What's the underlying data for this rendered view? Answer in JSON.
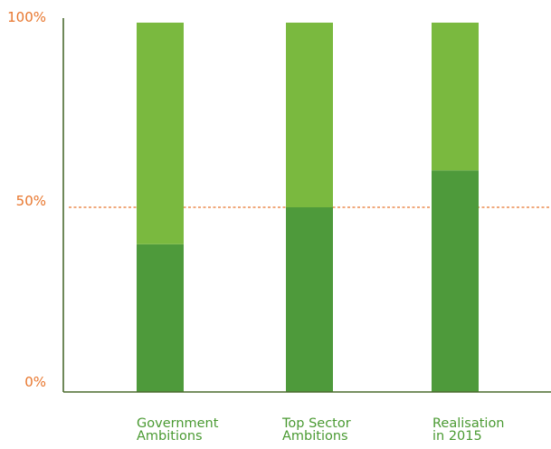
{
  "chart_data": {
    "type": "bar",
    "stacked": true,
    "percent_stacked": true,
    "categories": [
      [
        "Government",
        "Ambitions"
      ],
      [
        "Top Sector",
        "Ambitions"
      ],
      [
        "Realisation",
        "in 2015"
      ]
    ],
    "series": [
      {
        "values": [
          40,
          50,
          60
        ],
        "color": "#4e9a3b"
      },
      {
        "values": [
          60,
          50,
          40
        ],
        "color": "#7ab93f"
      }
    ],
    "y_ticks": [
      {
        "value": 0,
        "label": "0%"
      },
      {
        "value": 50,
        "label": "50%"
      },
      {
        "value": 100,
        "label": "100%"
      }
    ],
    "ylim": [
      0,
      100
    ],
    "reference_line": {
      "value": 50,
      "style": "dashed",
      "color": "#e8762d"
    },
    "grid": false,
    "colors": {
      "axis": "#4b6b2f",
      "tick_label": "#e8762d",
      "category_label": "#4a9a32",
      "reference_line": "#e8762d"
    }
  }
}
